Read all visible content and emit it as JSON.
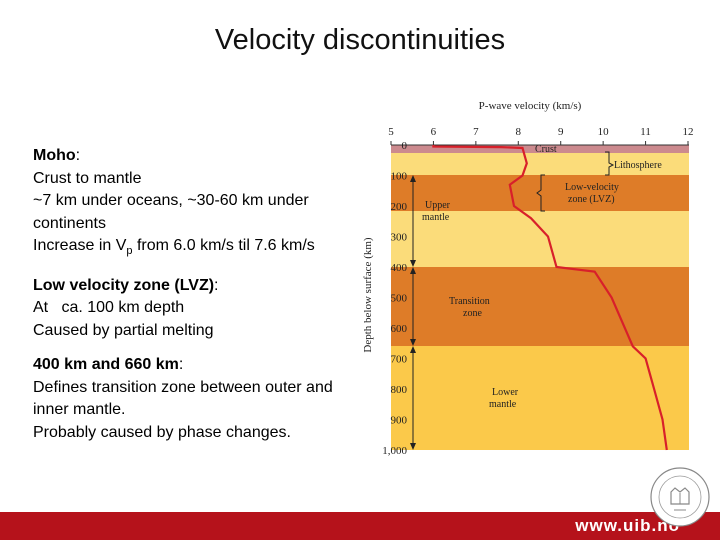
{
  "slide": {
    "title": "Velocity discontinuities",
    "moho": {
      "heading": "Moho",
      "line1": "Crust to mantle",
      "line2": "~7 km under oceans, ~30-60 km under continents",
      "line3_pre": "Increase in V",
      "line3_sub": "p",
      "line3_post": " from 6.0 km/s til 7.6 km/s"
    },
    "lvz": {
      "heading": "Low velocity zone (LVZ)",
      "line1": "At   ca. 100 km depth",
      "line2": "Caused by partial melting"
    },
    "transition": {
      "heading": "400 km and 660 km",
      "line1": "Defines transition zone between outer and inner mantle.",
      "line2": "Probably caused by phase changes."
    }
  },
  "diagram": {
    "x_axis_title": "P-wave velocity (km/s)",
    "x_ticks": [
      "5",
      "6",
      "7",
      "8",
      "9",
      "10",
      "11",
      "12"
    ],
    "y_axis_title": "Depth below surface (km)",
    "y_ticks": [
      "0",
      "100",
      "200",
      "300",
      "400",
      "500",
      "600",
      "700",
      "800",
      "900",
      "1,000"
    ],
    "labels": {
      "crust": "Crust",
      "lithosphere": "Lithosphere",
      "lvz1": "Low-velocity",
      "lvz2": "zone (LVZ)",
      "upper1": "Upper",
      "upper2": "mantle",
      "trans1": "Transition",
      "trans2": "zone",
      "lower1": "Lower",
      "lower2": "mantle"
    },
    "colors": {
      "crust": "#cc8a8e",
      "light": "#fbdc7a",
      "dark": "#de7c28",
      "lower": "#fbc94a",
      "curve": "#d8202a"
    }
  },
  "velocity_profile": {
    "type": "line",
    "x_unit": "km/s",
    "y_unit": "km depth",
    "points": [
      [
        6.0,
        0
      ],
      [
        6.0,
        5
      ],
      [
        7.6,
        7
      ],
      [
        8.1,
        10
      ],
      [
        8.2,
        60
      ],
      [
        8.1,
        100
      ],
      [
        7.8,
        130
      ],
      [
        7.9,
        200
      ],
      [
        8.3,
        240
      ],
      [
        8.7,
        300
      ],
      [
        8.9,
        400
      ],
      [
        9.8,
        415
      ],
      [
        10.2,
        500
      ],
      [
        10.7,
        660
      ],
      [
        11.0,
        700
      ],
      [
        11.2,
        800
      ],
      [
        11.4,
        900
      ],
      [
        11.5,
        1000
      ]
    ]
  },
  "footer": {
    "url": "www.uib.no"
  }
}
